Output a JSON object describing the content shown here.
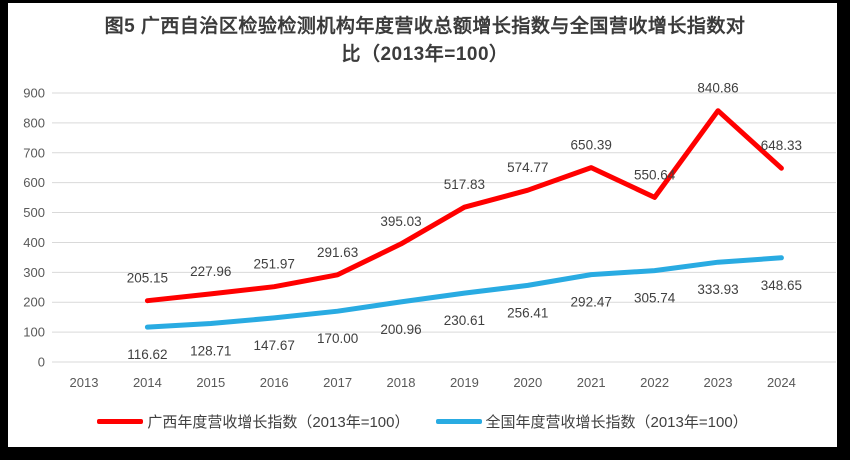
{
  "title_lines": [
    "图5  广西自治区检验检测机构年度营收总额增长指数与全国营收增长指数对",
    "比（2013年=100）"
  ],
  "chart_data": {
    "type": "line",
    "title": "图5 广西自治区检验检测机构年度营收总额增长指数与全国营收增长指数对比（2013年=100）",
    "categories": [
      "2013",
      "2014",
      "2015",
      "2016",
      "2017",
      "2018",
      "2019",
      "2020",
      "2021",
      "2022",
      "2023",
      "2024"
    ],
    "xlabel": "",
    "ylabel": "",
    "ylim": [
      0,
      900
    ],
    "ytick_step": 100,
    "grid": true,
    "legend_position": "bottom",
    "series": [
      {
        "name": "广西年度营收增长指数（2013年=100）",
        "color": "#FF0000",
        "label_position": "above",
        "values": [
          null,
          205.15,
          227.96,
          251.97,
          291.63,
          395.03,
          517.83,
          574.77,
          650.39,
          550.64,
          840.86,
          648.33
        ],
        "labels": [
          null,
          "205.15",
          "227.96",
          "251.97",
          "291.63",
          "395.03",
          "517.83",
          "574.77",
          "650.39",
          "550.64",
          "840.86",
          "648.33"
        ]
      },
      {
        "name": "全国年度营收增长指数（2013年=100）",
        "color": "#29ABE2",
        "label_position": "below",
        "values": [
          null,
          116.62,
          128.71,
          147.67,
          170.0,
          200.96,
          230.61,
          256.41,
          292.47,
          305.74,
          333.93,
          348.65
        ],
        "labels": [
          null,
          "116.62",
          "128.71",
          "147.67",
          "170.00",
          "200.96",
          "230.61",
          "256.41",
          "292.47",
          "305.74",
          "333.93",
          "348.65"
        ]
      }
    ],
    "colors": {
      "grid": "#D9D9D9",
      "axis_text": "#595959",
      "data_label_text": "#404040",
      "frame_border": "#000000"
    }
  }
}
